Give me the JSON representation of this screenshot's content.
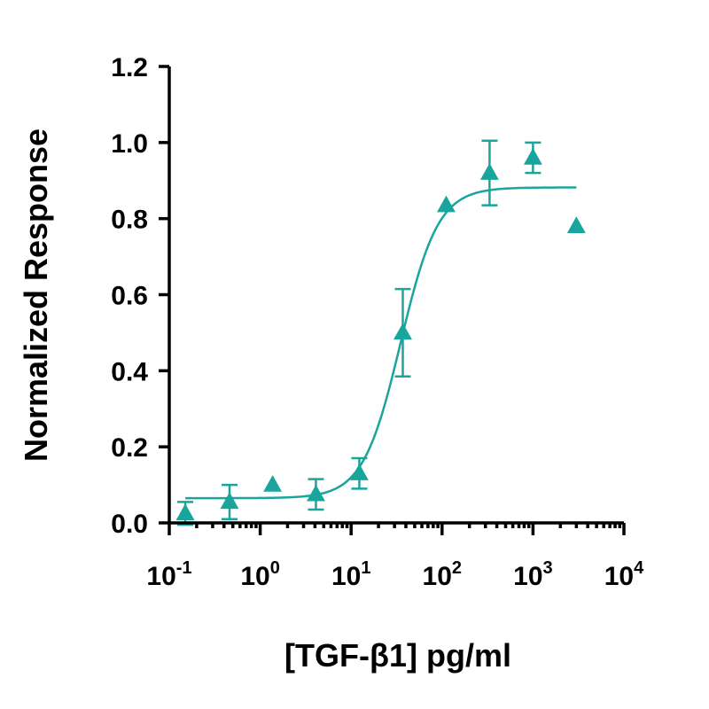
{
  "chart_data": {
    "type": "scatter",
    "xlabel": "[TGF-β1] pg/ml",
    "ylabel": "Normalized Response",
    "x_scale": "log",
    "xlim": [
      0.1,
      10000
    ],
    "ylim": [
      0,
      1.2
    ],
    "x_ticks": [
      {
        "value": 0.1,
        "base": "10",
        "exp": "-1"
      },
      {
        "value": 1,
        "base": "10",
        "exp": "0"
      },
      {
        "value": 10,
        "base": "10",
        "exp": "1"
      },
      {
        "value": 100,
        "base": "10",
        "exp": "2"
      },
      {
        "value": 1000,
        "base": "10",
        "exp": "3"
      },
      {
        "value": 10000,
        "base": "10",
        "exp": "4"
      }
    ],
    "y_ticks": [
      {
        "value": 0,
        "label": "0.0"
      },
      {
        "value": 0.2,
        "label": "0.2"
      },
      {
        "value": 0.4,
        "label": "0.4"
      },
      {
        "value": 0.6,
        "label": "0.6"
      },
      {
        "value": 0.8,
        "label": "0.8"
      },
      {
        "value": 1.0,
        "label": "1.0"
      },
      {
        "value": 1.2,
        "label": "1.2"
      }
    ],
    "grid": false,
    "marker": "triangle",
    "color": "#1aa59c",
    "series": [
      {
        "points": [
          {
            "x": 0.15,
            "y": 0.025,
            "err": 0.03
          },
          {
            "x": 0.46,
            "y": 0.055,
            "err": 0.045
          },
          {
            "x": 1.37,
            "y": 0.1,
            "err": 0
          },
          {
            "x": 4.1,
            "y": 0.075,
            "err": 0.04
          },
          {
            "x": 12.3,
            "y": 0.13,
            "err": 0.04
          },
          {
            "x": 37,
            "y": 0.5,
            "err": 0.115
          },
          {
            "x": 111,
            "y": 0.835,
            "err": 0
          },
          {
            "x": 333,
            "y": 0.92,
            "err": 0.085
          },
          {
            "x": 1000,
            "y": 0.96,
            "err": 0.04
          },
          {
            "x": 3000,
            "y": 0.78,
            "err": 0
          }
        ]
      }
    ],
    "fit": {
      "model": "4PL",
      "bottom": 0.065,
      "top": 0.882,
      "ec50": 35,
      "hill": 2.1,
      "x_range": [
        0.15,
        3000
      ]
    }
  }
}
